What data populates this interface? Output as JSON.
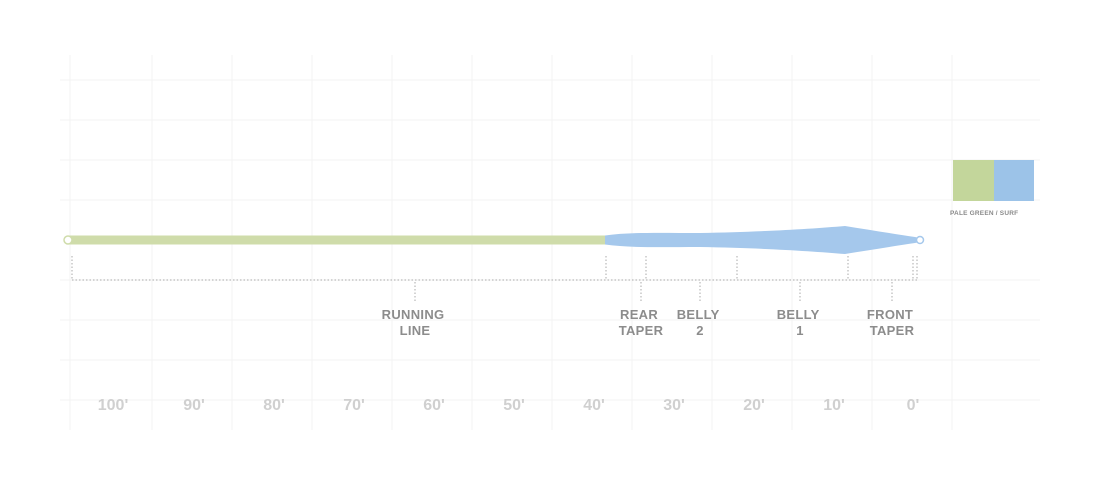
{
  "line": {
    "colors": {
      "running": "#cfdcaa",
      "head": "#a5c8ec",
      "bracket": "#a9a9a9",
      "grid": "#f3f3f3"
    }
  },
  "sections": [
    {
      "lines": [
        "RUNNING",
        "LINE"
      ]
    },
    {
      "lines": [
        "REAR",
        "TAPER"
      ]
    },
    {
      "lines": [
        "BELLY",
        "2"
      ]
    },
    {
      "lines": [
        "BELLY",
        "1"
      ]
    },
    {
      "lines": [
        "FRONT",
        "TAPER"
      ]
    }
  ],
  "axis": {
    "labels": [
      "100'",
      "90'",
      "80'",
      "70'",
      "60'",
      "50'",
      "40'",
      "30'",
      "20'",
      "10'",
      "0'"
    ]
  },
  "legend": {
    "swatches": [
      {
        "name": "pale-green",
        "color": "#c3d69b"
      },
      {
        "name": "surf",
        "color": "#9cc3e8"
      }
    ],
    "label": "PALE GREEN / SURF"
  }
}
